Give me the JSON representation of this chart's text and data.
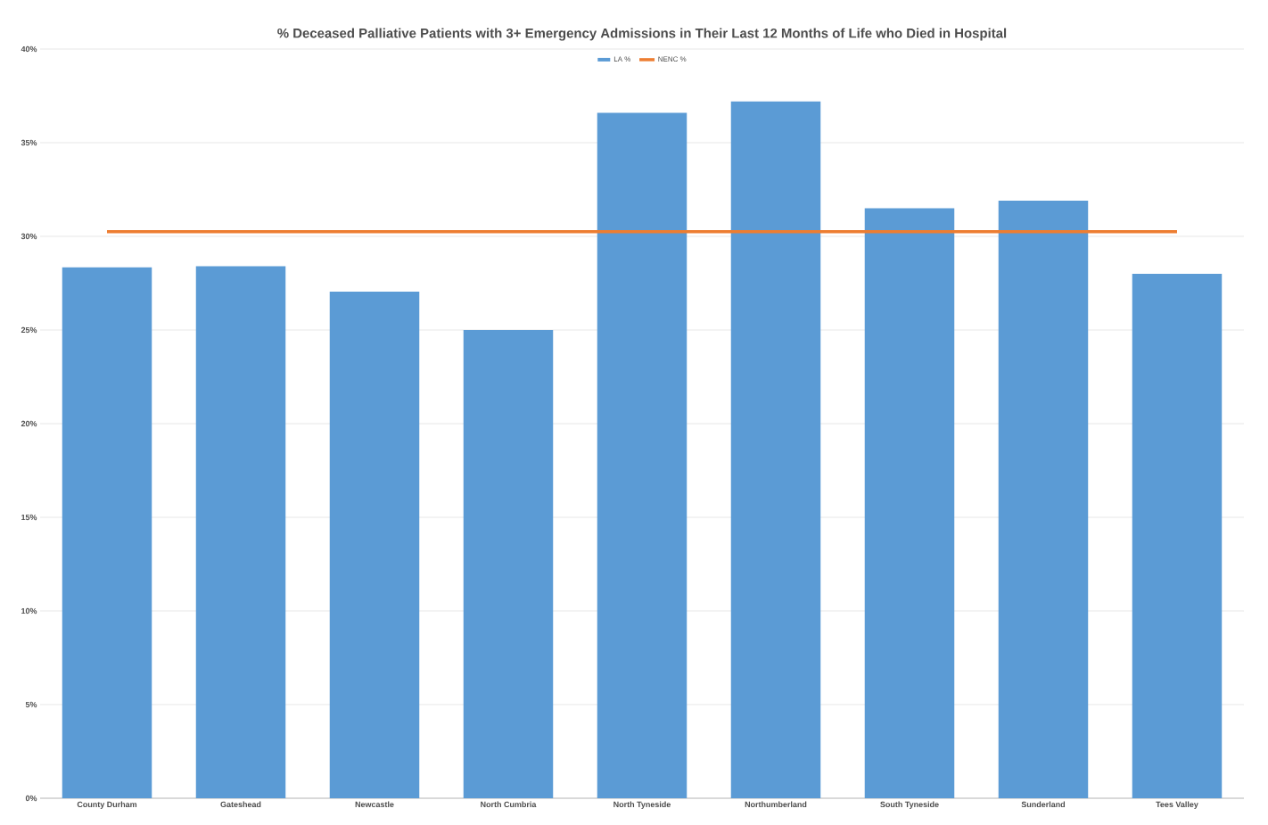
{
  "chart_data": {
    "type": "bar",
    "title": "% Deceased Palliative Patients with 3+ Emergency Admissions in Their Last 12 Months of Life who Died in Hospital",
    "categories": [
      "County Durham",
      "Gateshead",
      "Newcastle",
      "North Cumbria",
      "North Tyneside",
      "Northumberland",
      "South Tyneside",
      "Sunderland",
      "Tees Valley"
    ],
    "series": [
      {
        "name": "LA %",
        "color": "#5b9bd5",
        "values": [
          28.35,
          28.4,
          27.05,
          25.0,
          36.6,
          37.2,
          31.5,
          31.9,
          28.0
        ]
      },
      {
        "name": "NENC %",
        "type": "line",
        "color": "#ed7d31",
        "values": [
          30.25,
          30.25,
          30.25,
          30.25,
          30.25,
          30.25,
          30.25,
          30.25,
          30.25
        ]
      }
    ],
    "ylim": [
      0,
      40
    ],
    "yticks": [
      {
        "value": 0,
        "label": "0%"
      },
      {
        "value": 5,
        "label": "5%"
      },
      {
        "value": 10,
        "label": "10%"
      },
      {
        "value": 15,
        "label": "15%"
      },
      {
        "value": 20,
        "label": "20%"
      },
      {
        "value": 25,
        "label": "25%"
      },
      {
        "value": 30,
        "label": "30%"
      },
      {
        "value": 35,
        "label": "35%"
      },
      {
        "value": 40,
        "label": "40%"
      }
    ],
    "grid": "y",
    "legend": "top"
  }
}
